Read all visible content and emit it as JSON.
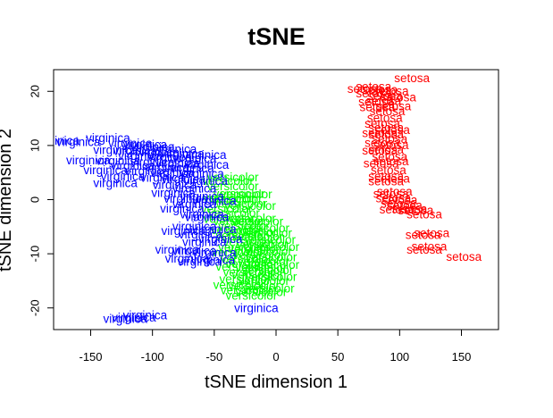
{
  "chart_data": {
    "type": "scatter",
    "title": "tSNE",
    "xlabel": "tSNE dimension 1",
    "ylabel": "tSNE dimension 2",
    "xlim": [
      -180,
      180
    ],
    "ylim": [
      -24,
      24
    ],
    "x_ticks": [
      -150,
      -100,
      -50,
      0,
      50,
      100,
      150
    ],
    "y_ticks": [
      -20,
      -10,
      0,
      10,
      20
    ],
    "x_tick_labels": [
      "-150",
      "-100",
      "-50",
      "0",
      "50",
      "100",
      "150"
    ],
    "y_tick_labels": [
      "-20",
      "-10",
      "0",
      "10",
      "20"
    ],
    "grid": false,
    "legend": "none",
    "marker": "species name text at each point",
    "series": [
      {
        "name": "setosa",
        "color": "#ff0000",
        "points": [
          [
            110,
            22.3
          ],
          [
            79,
            20.7
          ],
          [
            72,
            20.3
          ],
          [
            84,
            20.1
          ],
          [
            93,
            19.9
          ],
          [
            79,
            19.5
          ],
          [
            88,
            19.0
          ],
          [
            99,
            18.7
          ],
          [
            87,
            18.1
          ],
          [
            81,
            17.9
          ],
          [
            95,
            17.1
          ],
          [
            82,
            16.9
          ],
          [
            90,
            16.2
          ],
          [
            88,
            14.9
          ],
          [
            86,
            13.9
          ],
          [
            89,
            13.1
          ],
          [
            94,
            12.7
          ],
          [
            84,
            12.1
          ],
          [
            89,
            11.9
          ],
          [
            92,
            11.1
          ],
          [
            86,
            10.3
          ],
          [
            93,
            9.9
          ],
          [
            89,
            9.1
          ],
          [
            84,
            8.9
          ],
          [
            92,
            7.8
          ],
          [
            93,
            6.9
          ],
          [
            85,
            6.5
          ],
          [
            91,
            5.3
          ],
          [
            89,
            4.1
          ],
          [
            94,
            3.7
          ],
          [
            89,
            3.2
          ],
          [
            96,
            1.3
          ],
          [
            93,
            0.9
          ],
          [
            95,
            0.1
          ],
          [
            100,
            -0.2
          ],
          [
            99,
            -0.9
          ],
          [
            104,
            -1.2
          ],
          [
            108,
            -1.9
          ],
          [
            98,
            -2.0
          ],
          [
            113,
            -2.1
          ],
          [
            120,
            -2.9
          ],
          [
            126,
            -6.3
          ],
          [
            119,
            -6.7
          ],
          [
            124,
            -8.8
          ],
          [
            120,
            -9.4
          ],
          [
            152,
            -10.7
          ]
        ]
      },
      {
        "name": "versicolor",
        "color": "#00ff00",
        "points": [
          [
            -35,
            4.0
          ],
          [
            -39,
            3.3
          ],
          [
            -35,
            2.3
          ],
          [
            -30,
            0.9
          ],
          [
            -24,
            0.8
          ],
          [
            -38,
            0.1
          ],
          [
            -32,
            -0.1
          ],
          [
            -28,
            -0.9
          ],
          [
            -21,
            -1.3
          ],
          [
            -40,
            -1.9
          ],
          [
            -34,
            -2.6
          ],
          [
            -21,
            -3.6
          ],
          [
            -38,
            -3.7
          ],
          [
            -30,
            -4.1
          ],
          [
            -15,
            -4.2
          ],
          [
            -26,
            -5.0
          ],
          [
            -10,
            -5.4
          ],
          [
            -32,
            -5.8
          ],
          [
            -20,
            -6.1
          ],
          [
            -8,
            -6.3
          ],
          [
            -28,
            -6.8
          ],
          [
            -15,
            -7.0
          ],
          [
            -5,
            -7.6
          ],
          [
            -22,
            -8.0
          ],
          [
            -11,
            -8.4
          ],
          [
            -2,
            -8.9
          ],
          [
            -26,
            -9.0
          ],
          [
            -18,
            -9.3
          ],
          [
            -8,
            -9.7
          ],
          [
            -31,
            -9.9
          ],
          [
            -14,
            -10.4
          ],
          [
            -4,
            -10.8
          ],
          [
            -24,
            -11.1
          ],
          [
            -10,
            -11.5
          ],
          [
            -20,
            -12.0
          ],
          [
            -2,
            -12.2
          ],
          [
            -28,
            -12.5
          ],
          [
            -12,
            -12.8
          ],
          [
            -7,
            -13.2
          ],
          [
            -22,
            -13.6
          ],
          [
            -15,
            -14.0
          ],
          [
            -4,
            -14.4
          ],
          [
            -25,
            -14.8
          ],
          [
            -10,
            -15.2
          ],
          [
            -30,
            -15.9
          ],
          [
            -18,
            -16.1
          ],
          [
            -6,
            -16.6
          ],
          [
            -24,
            -16.9
          ],
          [
            -12,
            -17.2
          ],
          [
            -20,
            -17.9
          ]
        ]
      },
      {
        "name": "virginica",
        "color": "#0000ff",
        "points": [
          [
            -136,
            11.2
          ],
          [
            -177,
            10.7
          ],
          [
            -160,
            10.5
          ],
          [
            -118,
            10.2
          ],
          [
            -106,
            10.0
          ],
          [
            -100,
            9.6
          ],
          [
            -82,
            9.2
          ],
          [
            -130,
            9.0
          ],
          [
            -114,
            8.8
          ],
          [
            -96,
            8.6
          ],
          [
            -76,
            8.3
          ],
          [
            -58,
            8.1
          ],
          [
            -110,
            7.9
          ],
          [
            -86,
            7.7
          ],
          [
            -66,
            7.4
          ],
          [
            -152,
            7.1
          ],
          [
            -128,
            7.0
          ],
          [
            -100,
            6.8
          ],
          [
            -80,
            6.5
          ],
          [
            -56,
            6.3
          ],
          [
            -116,
            6.1
          ],
          [
            -88,
            5.8
          ],
          [
            -68,
            5.6
          ],
          [
            -138,
            5.3
          ],
          [
            -104,
            5.1
          ],
          [
            -84,
            4.8
          ],
          [
            -60,
            4.6
          ],
          [
            -124,
            4.1
          ],
          [
            -92,
            3.9
          ],
          [
            -75,
            3.6
          ],
          [
            -57,
            3.3
          ],
          [
            -130,
            2.9
          ],
          [
            -82,
            2.6
          ],
          [
            -66,
            1.9
          ],
          [
            -83,
            1.1
          ],
          [
            -60,
            0.4
          ],
          [
            -73,
            0.0
          ],
          [
            -50,
            -0.4
          ],
          [
            -66,
            -1.0
          ],
          [
            -76,
            -1.8
          ],
          [
            -60,
            -2.9
          ],
          [
            -56,
            -3.4
          ],
          [
            -66,
            -5.1
          ],
          [
            -50,
            -5.6
          ],
          [
            -75,
            -5.9
          ],
          [
            -61,
            -6.6
          ],
          [
            -45,
            -7.4
          ],
          [
            -58,
            -8.0
          ],
          [
            -80,
            -9.4
          ],
          [
            -66,
            -9.6
          ],
          [
            -50,
            -10.0
          ],
          [
            -72,
            -11.0
          ],
          [
            -62,
            -11.6
          ],
          [
            -51,
            -11.3
          ],
          [
            -16,
            -20.2
          ],
          [
            -106,
            -21.5
          ],
          [
            -115,
            -21.9
          ],
          [
            -122,
            -22.2
          ]
        ]
      }
    ]
  }
}
